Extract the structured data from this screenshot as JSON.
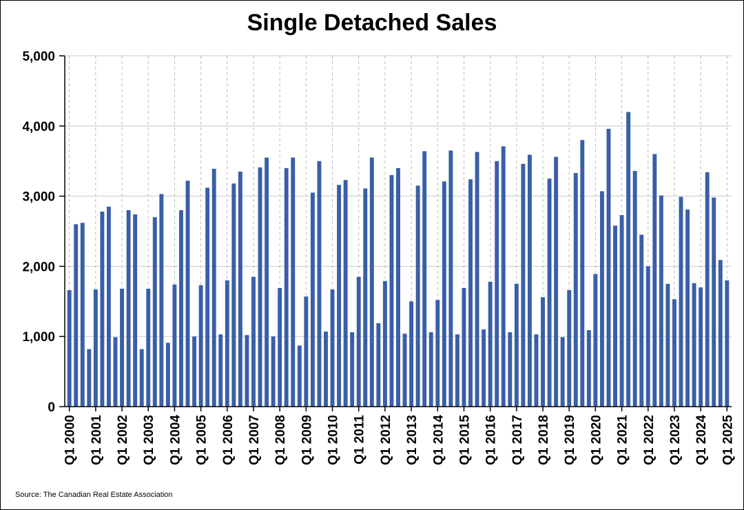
{
  "chart_data": {
    "type": "bar",
    "title": "Single Detached Sales",
    "xlabel": "",
    "ylabel": "",
    "ylim": [
      0,
      5000
    ],
    "yticks": [
      0,
      1000,
      2000,
      3000,
      4000,
      5000
    ],
    "ytick_labels": [
      "0",
      "1,000",
      "2,000",
      "3,000",
      "4,000",
      "5,000"
    ],
    "xtick_labels": [
      "Q1 2000",
      "Q1 2001",
      "Q1 2002",
      "Q1 2003",
      "Q1 2004",
      "Q1 2005",
      "Q1 2006",
      "Q1 2007",
      "Q1 2008",
      "Q1 2009",
      "Q1 2010",
      "Q1 2011",
      "Q1 2012",
      "Q1 2013",
      "Q1 2014",
      "Q1 2015",
      "Q1 2016",
      "Q1 2017",
      "Q1 2018",
      "Q1 2019",
      "Q1 2020",
      "Q1 2021",
      "Q1 2022",
      "Q1 2023",
      "Q1 2024",
      "Q1 2025"
    ],
    "categories": [
      "Q1 2000",
      "Q2 2000",
      "Q3 2000",
      "Q4 2000",
      "Q1 2001",
      "Q2 2001",
      "Q3 2001",
      "Q4 2001",
      "Q1 2002",
      "Q2 2002",
      "Q3 2002",
      "Q4 2002",
      "Q1 2003",
      "Q2 2003",
      "Q3 2003",
      "Q4 2003",
      "Q1 2004",
      "Q2 2004",
      "Q3 2004",
      "Q4 2004",
      "Q1 2005",
      "Q2 2005",
      "Q3 2005",
      "Q4 2005",
      "Q1 2006",
      "Q2 2006",
      "Q3 2006",
      "Q4 2006",
      "Q1 2007",
      "Q2 2007",
      "Q3 2007",
      "Q4 2007",
      "Q1 2008",
      "Q2 2008",
      "Q3 2008",
      "Q4 2008",
      "Q1 2009",
      "Q2 2009",
      "Q3 2009",
      "Q4 2009",
      "Q1 2010",
      "Q2 2010",
      "Q3 2010",
      "Q4 2010",
      "Q1 2011",
      "Q2 2011",
      "Q3 2011",
      "Q4 2011",
      "Q1 2012",
      "Q2 2012",
      "Q3 2012",
      "Q4 2012",
      "Q1 2013",
      "Q2 2013",
      "Q3 2013",
      "Q4 2013",
      "Q1 2014",
      "Q2 2014",
      "Q3 2014",
      "Q4 2014",
      "Q1 2015",
      "Q2 2015",
      "Q3 2015",
      "Q4 2015",
      "Q1 2016",
      "Q2 2016",
      "Q3 2016",
      "Q4 2016",
      "Q1 2017",
      "Q2 2017",
      "Q3 2017",
      "Q4 2017",
      "Q1 2018",
      "Q2 2018",
      "Q3 2018",
      "Q4 2018",
      "Q1 2019",
      "Q2 2019",
      "Q3 2019",
      "Q4 2019",
      "Q1 2020",
      "Q2 2020",
      "Q3 2020",
      "Q4 2020",
      "Q1 2021",
      "Q2 2021",
      "Q3 2021",
      "Q4 2021",
      "Q1 2022",
      "Q2 2022",
      "Q3 2022",
      "Q4 2022",
      "Q1 2023",
      "Q2 2023",
      "Q3 2023",
      "Q4 2023",
      "Q1 2024",
      "Q2 2024",
      "Q3 2024",
      "Q4 2024",
      "Q1 2025"
    ],
    "series": [
      {
        "name": "Single Detached Sales",
        "color": "#3a5fa8",
        "values": [
          1660,
          2600,
          2620,
          820,
          1670,
          2780,
          2850,
          990,
          1680,
          2800,
          2740,
          820,
          1680,
          2700,
          3030,
          910,
          1740,
          2800,
          3220,
          1000,
          1730,
          3120,
          3390,
          1030,
          1800,
          3180,
          3350,
          1020,
          1850,
          3410,
          3550,
          1000,
          1690,
          3400,
          3550,
          870,
          1570,
          3050,
          3500,
          1070,
          1670,
          3160,
          3230,
          1060,
          1850,
          3110,
          3550,
          1190,
          1790,
          3300,
          3400,
          1040,
          1500,
          3150,
          3640,
          1060,
          1520,
          3210,
          3650,
          1030,
          1690,
          3240,
          3630,
          1100,
          1780,
          3500,
          3710,
          1060,
          1750,
          3460,
          3590,
          1030,
          1560,
          3250,
          3560,
          990,
          1660,
          3330,
          3800,
          1090,
          1890,
          3070,
          3960,
          2580,
          2730,
          4200,
          3360,
          2450,
          2000,
          3600,
          3010,
          1750,
          1530,
          2990,
          2810,
          1760,
          1700,
          3340,
          2980,
          2090,
          1800
        ]
      }
    ],
    "grid": true,
    "source": "Source: The Canadian Real Estate Association"
  }
}
